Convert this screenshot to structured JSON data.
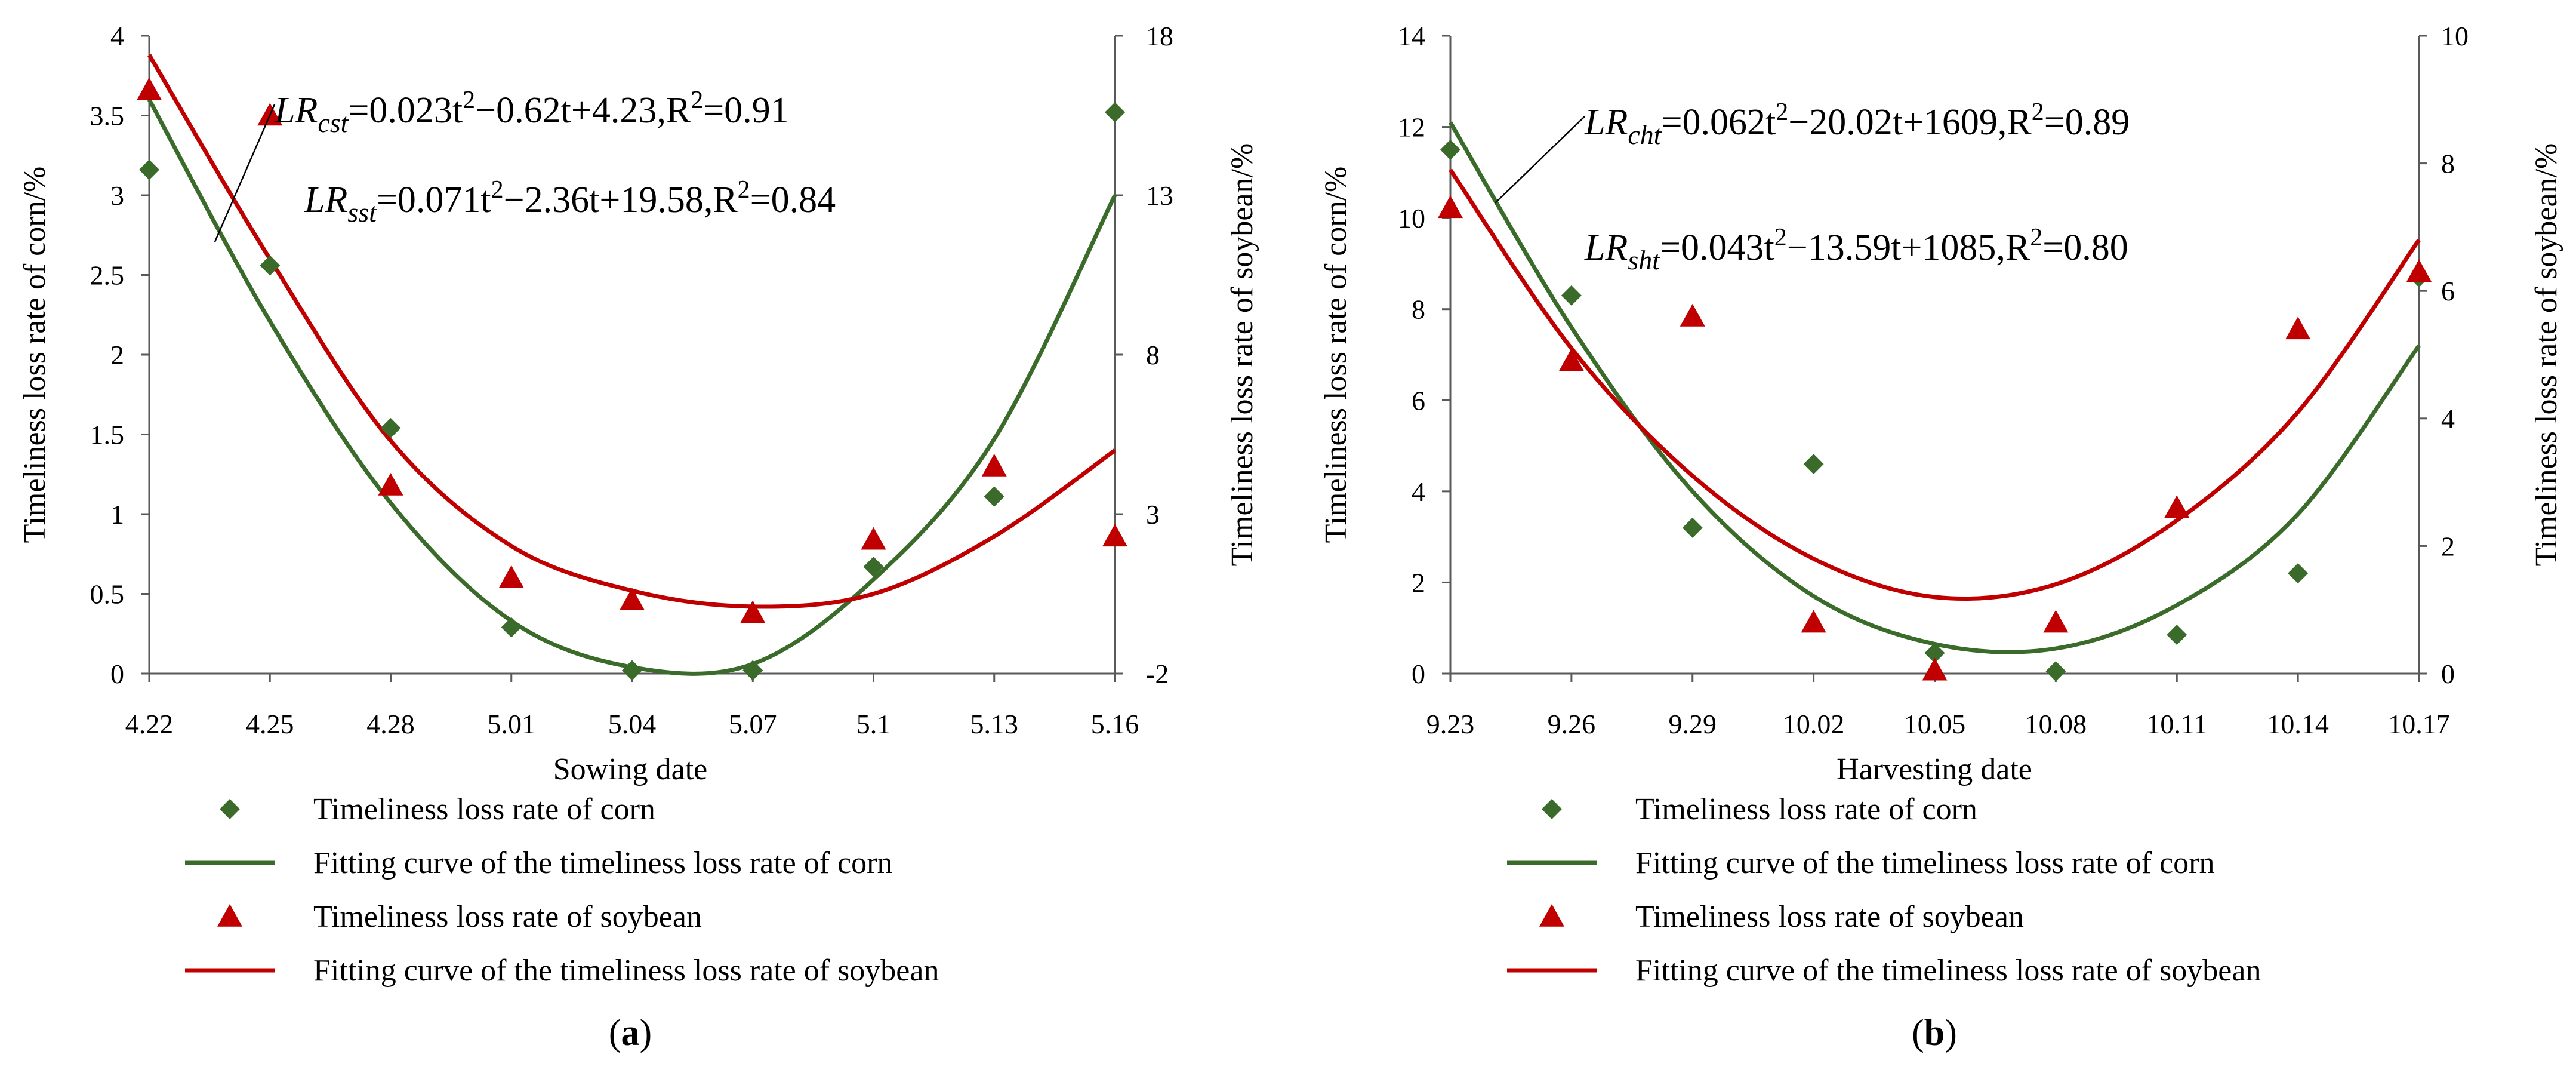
{
  "colors": {
    "corn": "#3b6b2a",
    "soybean": "#c00000",
    "axis": "#595959"
  },
  "chart_data": [
    {
      "id": "a",
      "type": "scatter",
      "panel_label": "a",
      "xlabel": "Sowing date",
      "ylabel": "Timeliness loss rate of corn/%",
      "y2label": "Timeliness loss rate of soybean/%",
      "categories": [
        "4.22",
        "4.25",
        "4.28",
        "5.01",
        "5.04",
        "5.07",
        "5.1",
        "5.13",
        "5.16"
      ],
      "ylim": [
        0,
        4
      ],
      "yticks": [
        "0",
        "0.5",
        "1",
        "1.5",
        "2",
        "2.5",
        "3",
        "3.5",
        "4"
      ],
      "y2lim": [
        -2,
        18
      ],
      "y2ticks": [
        "-2",
        "3",
        "8",
        "13",
        "18"
      ],
      "series": [
        {
          "name": "Timeliness loss rate of corn",
          "axis": "left",
          "marker": "diamond",
          "color": "#3b6b2a",
          "values": [
            3.16,
            2.56,
            1.54,
            0.29,
            0.02,
            0.02,
            0.67,
            1.11,
            3.52
          ]
        },
        {
          "name": "Timeliness loss rate of soybean",
          "axis": "right",
          "marker": "triangle",
          "color": "#c00000",
          "values": [
            16.3,
            15.5,
            3.9,
            1.0,
            0.3,
            -0.1,
            2.2,
            4.5,
            2.3
          ]
        },
        {
          "name": "Fitting curve of the timeliness loss rate of corn",
          "axis": "left",
          "line": true,
          "color": "#3b6b2a",
          "values": [
            3.6,
            2.21,
            1.07,
            0.33,
            0.04,
            0.06,
            0.59,
            1.47,
            3.0
          ]
        },
        {
          "name": "Fitting curve of the timeliness loss rate of soybean",
          "axis": "right",
          "line": true,
          "color": "#c00000",
          "values": [
            17.4,
            11.0,
            5.3,
            2.0,
            0.6,
            0.1,
            0.5,
            2.3,
            5.0
          ]
        }
      ],
      "equations": [
        {
          "lhs": "LR",
          "sub": "cst",
          "rhs_before_sup": "=0.023t",
          "rhs_after_sup": "−0.62t+4.23,R",
          "tail": "=0.91"
        },
        {
          "lhs": "LR",
          "sub": "sst",
          "rhs_before_sup": "=0.071t",
          "rhs_after_sup": "−2.36t+19.58,R",
          "tail": "=0.84"
        }
      ],
      "legend": [
        "Timeliness loss rate of corn",
        "Fitting curve of the timeliness loss rate of corn",
        "Timeliness loss rate of soybean",
        "Fitting curve of the timeliness loss rate of soybean"
      ]
    },
    {
      "id": "b",
      "type": "scatter",
      "panel_label": "b",
      "xlabel": "Harvesting date",
      "ylabel": "Timeliness loss rate of corn/%",
      "y2label": "Timeliness loss rate of soybean/%",
      "categories": [
        "9.23",
        "9.26",
        "9.29",
        "10.02",
        "10.05",
        "10.08",
        "10.11",
        "10.14",
        "10.17"
      ],
      "ylim": [
        0,
        14
      ],
      "yticks": [
        "0",
        "2",
        "4",
        "6",
        "8",
        "10",
        "12",
        "14"
      ],
      "y2lim": [
        0,
        10
      ],
      "y2ticks": [
        "0",
        "2",
        "4",
        "6",
        "8",
        "10"
      ],
      "series": [
        {
          "name": "Timeliness loss rate of corn",
          "axis": "left",
          "marker": "diamond",
          "color": "#3b6b2a",
          "values": [
            11.5,
            8.3,
            3.2,
            4.6,
            0.45,
            0.05,
            0.85,
            2.2,
            8.7
          ]
        },
        {
          "name": "Timeliness loss rate of soybean",
          "axis": "right",
          "marker": "triangle",
          "color": "#c00000",
          "values": [
            7.3,
            4.9,
            5.6,
            0.8,
            0.05,
            0.8,
            2.6,
            5.4,
            6.3
          ]
        },
        {
          "name": "Fitting curve of the timeliness loss rate of corn",
          "axis": "left",
          "line": true,
          "color": "#3b6b2a",
          "values": [
            12.1,
            7.6,
            4.0,
            1.7,
            0.65,
            0.55,
            1.5,
            3.5,
            7.2
          ]
        },
        {
          "name": "Fitting curve of the timeliness loss rate of soybean",
          "axis": "right",
          "line": true,
          "color": "#c00000",
          "values": [
            7.9,
            5.1,
            3.1,
            1.8,
            1.2,
            1.4,
            2.4,
            4.1,
            6.8
          ]
        }
      ],
      "equations": [
        {
          "lhs": "LR",
          "sub": "cht",
          "rhs_before_sup": "=0.062t",
          "rhs_after_sup": "−20.02t+1609,R",
          "tail": "=0.89"
        },
        {
          "lhs": "LR",
          "sub": "sht",
          "rhs_before_sup": "=0.043t",
          "rhs_after_sup": "−13.59t+1085,R",
          "tail": "=0.80"
        }
      ],
      "legend": [
        "Timeliness loss rate of corn",
        "Fitting curve of the timeliness loss rate of corn",
        "Timeliness loss rate of soybean",
        "Fitting curve of the timeliness loss rate of soybean"
      ]
    }
  ]
}
